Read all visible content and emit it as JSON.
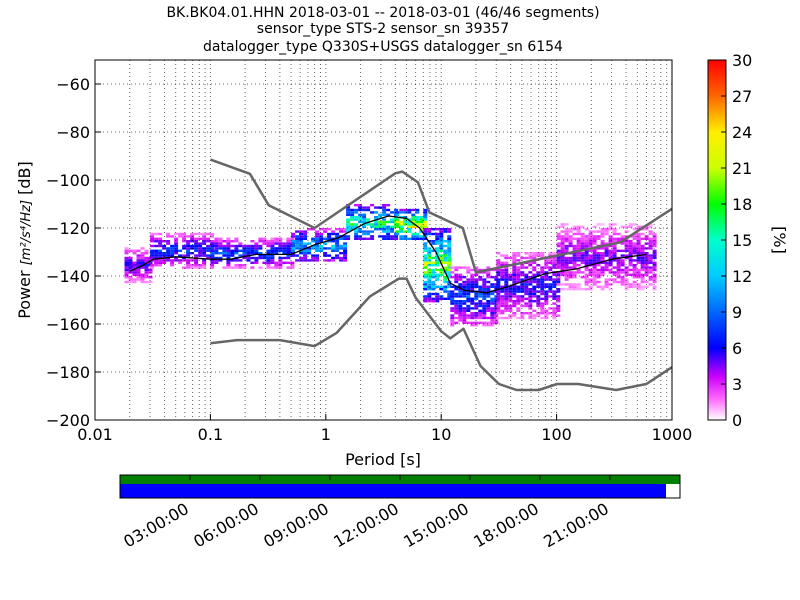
{
  "title": {
    "line1": "BK.BK04.01.HHN   2018-03-01 -- 2018-03-01  (46/46 segments)",
    "line2": "sensor_type STS-2 sensor_sn 39357",
    "line3": "datalogger_type Q330S+USGS datalogger_sn 6154"
  },
  "colors": {
    "nlnm_nhnm": "#666666",
    "mode_line": "#000000",
    "timeline_data": "#008000",
    "timeline_gaps": "#0000ff"
  },
  "chart_data": {
    "type": "heatmap",
    "xlabel": "Period [s]",
    "ylabel_prefix": "Power ",
    "ylabel_units": "[m²/s⁴/Hz]",
    "ylabel_suffix": " [dB]",
    "xscale": "log",
    "xlim": [
      0.01,
      1000
    ],
    "ylim": [
      -200,
      -50
    ],
    "x_ticks": [
      {
        "v": 0.01,
        "label": "0.01"
      },
      {
        "v": 0.1,
        "label": "0.1"
      },
      {
        "v": 1,
        "label": "1"
      },
      {
        "v": 10,
        "label": "10"
      },
      {
        "v": 100,
        "label": "100"
      },
      {
        "v": 1000,
        "label": "1000"
      }
    ],
    "y_ticks": [
      {
        "v": -60,
        "label": "−60"
      },
      {
        "v": -80,
        "label": "−80"
      },
      {
        "v": -100,
        "label": "−100"
      },
      {
        "v": -120,
        "label": "−120"
      },
      {
        "v": -140,
        "label": "−140"
      },
      {
        "v": -160,
        "label": "−160"
      },
      {
        "v": -180,
        "label": "−180"
      },
      {
        "v": -200,
        "label": "−200"
      }
    ],
    "grid": true,
    "colorbar": {
      "label": "[%]",
      "range": [
        0,
        30
      ],
      "ticks": [
        {
          "v": 0,
          "label": "0"
        },
        {
          "v": 3,
          "label": "3"
        },
        {
          "v": 6,
          "label": "6"
        },
        {
          "v": 9,
          "label": "9"
        },
        {
          "v": 12,
          "label": "12"
        },
        {
          "v": 15,
          "label": "15"
        },
        {
          "v": 18,
          "label": "18"
        },
        {
          "v": 21,
          "label": "21"
        },
        {
          "v": 24,
          "label": "24"
        },
        {
          "v": 27,
          "label": "27"
        },
        {
          "v": 30,
          "label": "30"
        }
      ]
    },
    "series": [
      {
        "role": "nhnm",
        "points": [
          [
            0.1,
            -91.5
          ],
          [
            0.22,
            -97.4
          ],
          [
            0.32,
            -110.5
          ],
          [
            0.8,
            -120
          ],
          [
            4.0,
            -97.2
          ],
          [
            4.6,
            -96.5
          ],
          [
            6.3,
            -101
          ],
          [
            7.9,
            -113.5
          ],
          [
            15.4,
            -120
          ],
          [
            20,
            -138.5
          ],
          [
            354.8,
            -126
          ],
          [
            1000,
            -112
          ]
        ]
      },
      {
        "role": "nlnm",
        "points": [
          [
            0.1,
            -168
          ],
          [
            0.17,
            -166.7
          ],
          [
            0.4,
            -166.7
          ],
          [
            0.8,
            -169.2
          ],
          [
            1.24,
            -163.7
          ],
          [
            2.4,
            -148.6
          ],
          [
            4.3,
            -141.1
          ],
          [
            5,
            -141.1
          ],
          [
            6,
            -149
          ],
          [
            10,
            -163
          ],
          [
            12,
            -166
          ],
          [
            15.6,
            -162
          ],
          [
            21.9,
            -177.5
          ],
          [
            31.6,
            -185
          ],
          [
            45,
            -187.5
          ],
          [
            70,
            -187.5
          ],
          [
            101,
            -185
          ],
          [
            154,
            -185
          ],
          [
            328,
            -187.5
          ],
          [
            600,
            -185
          ],
          [
            1000,
            -178
          ]
        ]
      },
      {
        "role": "mode",
        "points": [
          [
            0.02,
            -138
          ],
          [
            0.025,
            -136
          ],
          [
            0.032,
            -133
          ],
          [
            0.05,
            -132
          ],
          [
            0.1,
            -133
          ],
          [
            0.15,
            -133
          ],
          [
            0.25,
            -131
          ],
          [
            0.5,
            -131
          ],
          [
            0.8,
            -127
          ],
          [
            1.3,
            -124
          ],
          [
            2.2,
            -118
          ],
          [
            3.5,
            -115
          ],
          [
            5,
            -116
          ],
          [
            6.5,
            -120
          ],
          [
            9,
            -130
          ],
          [
            12,
            -143
          ],
          [
            16,
            -146
          ],
          [
            25,
            -147
          ],
          [
            40,
            -144
          ],
          [
            80,
            -139
          ],
          [
            150,
            -137
          ],
          [
            300,
            -133
          ],
          [
            600,
            -131
          ]
        ]
      }
    ],
    "density_note_shown": false,
    "density_bands": [
      {
        "x0": 0.018,
        "x1": 0.03,
        "ymin": -142,
        "ymax": -128,
        "peak": 7
      },
      {
        "x0": 0.03,
        "x1": 0.1,
        "ymin": -136,
        "ymax": -122,
        "peak": 9
      },
      {
        "x0": 0.1,
        "x1": 0.5,
        "ymin": -136,
        "ymax": -124,
        "peak": 10
      },
      {
        "x0": 0.5,
        "x1": 1.5,
        "ymin": -134,
        "ymax": -120,
        "peak": 14
      },
      {
        "x0": 1.5,
        "x1": 4,
        "ymin": -125,
        "ymax": -110,
        "peak": 20
      },
      {
        "x0": 4,
        "x1": 7,
        "ymin": -125,
        "ymax": -112,
        "peak": 28
      },
      {
        "x0": 7,
        "x1": 12,
        "ymin": -150,
        "ymax": -120,
        "peak": 24
      },
      {
        "x0": 12,
        "x1": 30,
        "ymin": -160,
        "ymax": -136,
        "peak": 10
      },
      {
        "x0": 30,
        "x1": 100,
        "ymin": -157,
        "ymax": -130,
        "peak": 8
      },
      {
        "x0": 100,
        "x1": 700,
        "ymin": -145,
        "ymax": -118,
        "peak": 6
      }
    ]
  },
  "timeline": {
    "ticks": [
      "03:00:00",
      "06:00:00",
      "09:00:00",
      "12:00:00",
      "15:00:00",
      "18:00:00",
      "21:00:00"
    ],
    "coverage_fraction": 0.975
  }
}
